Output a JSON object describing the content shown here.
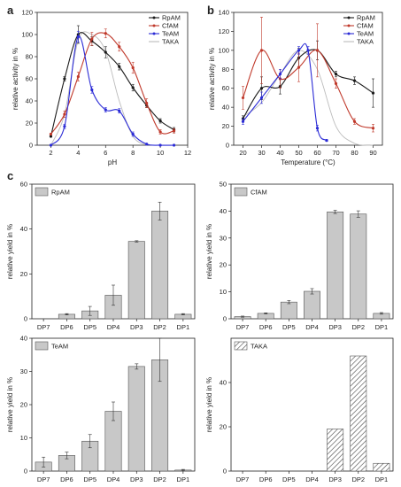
{
  "panel_letters": [
    "a",
    "b",
    "c"
  ],
  "colors": {
    "RpAM": "#1a1a1a",
    "CfAM": "#c0392b",
    "TeAM": "#2b2bd6",
    "TAKA": "#bcbcbc",
    "bar": "#c8c8c8",
    "bar_edge": "#555555",
    "error_bar": "#d9534f"
  },
  "chart_data": [
    {
      "id": "a",
      "type": "line",
      "xlabel": "pH",
      "ylabel": "relative activity in %",
      "xlim": [
        1,
        12
      ],
      "ylim": [
        0,
        120
      ],
      "xticks": [
        2,
        4,
        6,
        8,
        10,
        12
      ],
      "yticks": [
        0,
        20,
        40,
        60,
        80,
        100,
        120
      ],
      "legend": "top-right",
      "series": [
        {
          "name": "RpAM",
          "x": [
            2,
            3,
            4,
            5,
            6,
            7,
            8,
            9,
            10,
            11
          ],
          "y": [
            8,
            60,
            100,
            94,
            84,
            71,
            52,
            36,
            22,
            14
          ],
          "err": [
            0,
            2,
            8,
            4,
            5,
            3,
            3,
            2,
            2,
            2
          ]
        },
        {
          "name": "CfAM",
          "x": [
            2,
            3,
            4,
            5,
            6,
            7,
            8,
            9,
            10,
            11
          ],
          "y": [
            10,
            28,
            62,
            96,
            101,
            89,
            70,
            38,
            12,
            13
          ],
          "err": [
            0,
            3,
            4,
            6,
            4,
            4,
            5,
            4,
            2,
            2
          ]
        },
        {
          "name": "TeAM",
          "x": [
            2,
            3,
            4,
            5,
            6,
            7,
            8,
            9,
            10,
            11
          ],
          "y": [
            0,
            17,
            98,
            50,
            32,
            31,
            10,
            1,
            0,
            0
          ],
          "err": [
            0,
            2,
            5,
            3,
            2,
            2,
            2,
            0,
            0,
            0
          ]
        },
        {
          "name": "TAKA",
          "x": [
            2,
            3,
            4,
            5,
            6,
            7,
            8,
            9
          ],
          "y": [
            0,
            28,
            95,
            100,
            85,
            40,
            8,
            0
          ],
          "err": []
        }
      ]
    },
    {
      "id": "b",
      "type": "line",
      "xlabel": "Temperature (°C)",
      "ylabel": "relative activity in %",
      "xlim": [
        15,
        95
      ],
      "ylim": [
        0,
        140
      ],
      "xticks": [
        20,
        30,
        40,
        50,
        60,
        70,
        80,
        90
      ],
      "yticks": [
        0,
        20,
        40,
        60,
        80,
        100,
        120,
        140
      ],
      "legend": "top-right",
      "series": [
        {
          "name": "RpAM",
          "x": [
            20,
            30,
            40,
            50,
            60,
            70,
            80,
            90
          ],
          "y": [
            28,
            60,
            62,
            92,
            100,
            75,
            68,
            55
          ],
          "err": [
            3,
            12,
            8,
            10,
            10,
            3,
            4,
            15
          ]
        },
        {
          "name": "CfAM",
          "x": [
            20,
            30,
            40,
            50,
            60,
            70,
            80,
            90
          ],
          "y": [
            50,
            100,
            70,
            82,
            100,
            65,
            25,
            18
          ],
          "err": [
            12,
            35,
            10,
            15,
            28,
            5,
            3,
            4
          ]
        },
        {
          "name": "TeAM",
          "x": [
            20,
            30,
            40,
            50,
            55,
            60,
            65
          ],
          "y": [
            25,
            50,
            75,
            100,
            100,
            18,
            5
          ],
          "err": [
            3,
            6,
            5,
            4,
            4,
            3,
            1
          ]
        },
        {
          "name": "TAKA",
          "x": [
            20,
            30,
            40,
            50,
            60,
            70,
            80,
            90
          ],
          "y": [
            30,
            45,
            75,
            100,
            80,
            20,
            2,
            0
          ],
          "err": []
        }
      ]
    },
    {
      "id": "c1",
      "type": "bar",
      "name": "RpAM",
      "ylabel": "relative yield in %",
      "categories": [
        "DP7",
        "DP6",
        "DP5",
        "DP4",
        "DP3",
        "DP2",
        "DP1"
      ],
      "values": [
        0,
        2,
        3.5,
        10.5,
        34.5,
        48,
        2
      ],
      "errors": [
        0,
        0.3,
        2,
        4.5,
        0.3,
        4,
        0.3
      ],
      "ylim": [
        0,
        60
      ],
      "yticks": [
        0,
        20,
        40,
        60
      ],
      "hatched": false
    },
    {
      "id": "c2",
      "type": "bar",
      "name": "CfAM",
      "ylabel": "relative yield in %",
      "categories": [
        "DP7",
        "DP6",
        "DP5",
        "DP4",
        "DP3",
        "DP2",
        "DP1"
      ],
      "values": [
        0.8,
        2,
        6.2,
        10.2,
        39.7,
        38.9,
        2
      ],
      "errors": [
        0.2,
        0.2,
        0.6,
        1,
        0.6,
        1.2,
        0.3
      ],
      "ylim": [
        0,
        50
      ],
      "yticks": [
        0,
        10,
        20,
        30,
        40,
        50
      ],
      "hatched": false
    },
    {
      "id": "c3",
      "type": "bar",
      "name": "TeAM",
      "ylabel": "relative yield in %",
      "categories": [
        "DP7",
        "DP6",
        "DP5",
        "DP4",
        "DP3",
        "DP2",
        "DP1"
      ],
      "values": [
        2.7,
        4.7,
        9,
        18,
        31.5,
        33.5,
        0.3
      ],
      "errors": [
        1.5,
        1,
        2,
        2.8,
        0.8,
        6.5,
        0.2
      ],
      "ylim": [
        0,
        40
      ],
      "yticks": [
        0,
        10,
        20,
        30,
        40
      ],
      "hatched": false
    },
    {
      "id": "c4",
      "type": "bar",
      "name": "TAKA",
      "ylabel": "relative yield in %",
      "categories": [
        "DP7",
        "DP6",
        "DP5",
        "DP4",
        "DP3",
        "DP2",
        "DP1"
      ],
      "values": [
        0,
        0,
        0,
        0,
        19,
        52,
        3.5
      ],
      "errors": [],
      "ylim": [
        0,
        60
      ],
      "yticks": [
        0,
        20,
        40
      ],
      "hatched": true
    }
  ]
}
